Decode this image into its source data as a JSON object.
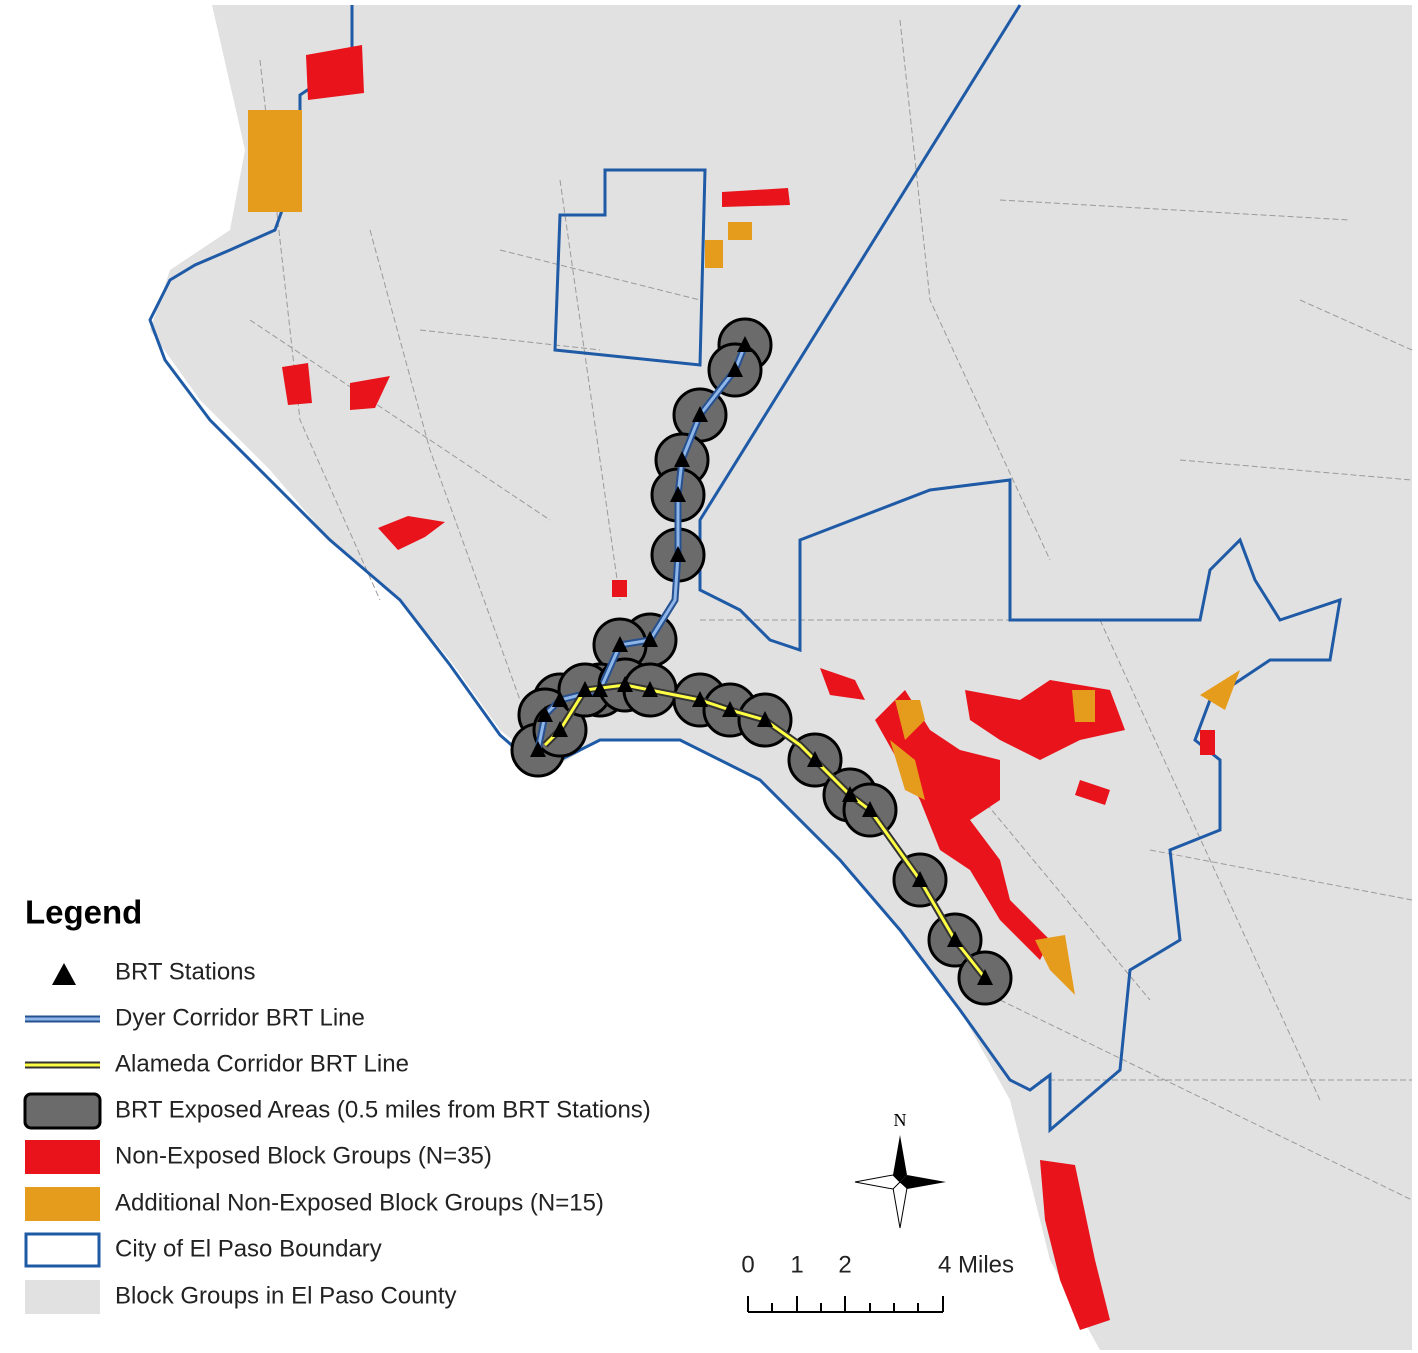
{
  "legend": {
    "title": "Legend",
    "items": [
      "BRT Stations",
      "Dyer Corridor BRT Line",
      "Alameda Corridor BRT Line",
      "BRT Exposed Areas (0.5 miles from BRT Stations)",
      "Non-Exposed Block Groups (N=35)",
      "Additional Non-Exposed Block Groups (N=15)",
      "City of El Paso Boundary",
      "Block Groups in El Paso County"
    ]
  },
  "north_arrow": "N",
  "scale_bar": {
    "labels": [
      "0",
      "1",
      "2",
      "4 Miles"
    ]
  }
}
